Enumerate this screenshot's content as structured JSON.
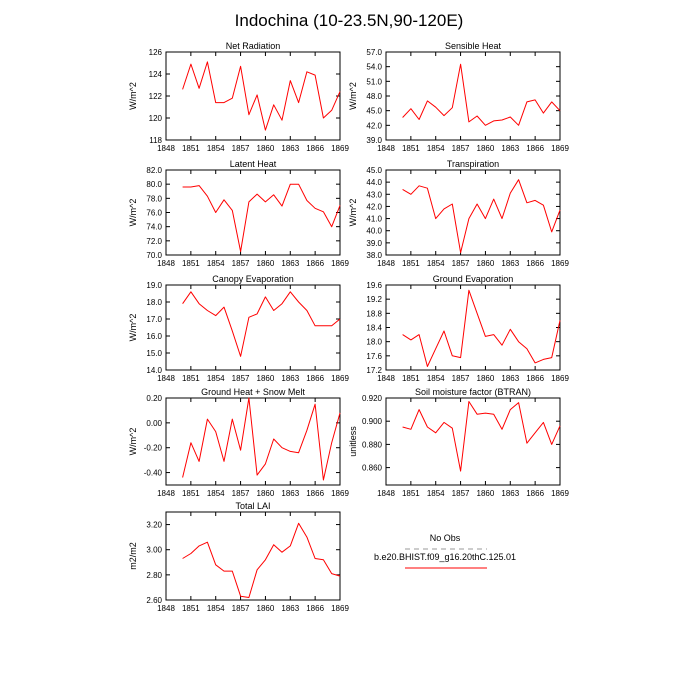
{
  "title": "Indochina (10-23.5N,90-120E)",
  "legend": {
    "entries": [
      {
        "name": "No Obs",
        "color": "#999999",
        "style": "dashed"
      },
      {
        "name": "b.e20.BHIST.f09_g16.20thC.125.01",
        "color": "#ff0000",
        "style": "solid"
      }
    ]
  },
  "chart_data": [
    {
      "type": "line",
      "title": "Net Radiation",
      "ylabel": "W/m^2",
      "xlim": [
        1848,
        1869
      ],
      "ylim": [
        118,
        126
      ],
      "xticks": [
        1848,
        1851,
        1854,
        1857,
        1860,
        1863,
        1866,
        1869
      ],
      "yticks": [
        "118",
        "120",
        "122",
        "124",
        "126"
      ],
      "x": [
        1850,
        1851,
        1852,
        1853,
        1854,
        1855,
        1856,
        1857,
        1858,
        1859,
        1860,
        1861,
        1862,
        1863,
        1864,
        1865,
        1866,
        1867,
        1868,
        1869
      ],
      "series": [
        {
          "color": "#ff0000",
          "values": [
            122.6,
            124.9,
            122.7,
            125.1,
            121.4,
            121.4,
            121.8,
            124.7,
            120.3,
            122.1,
            118.9,
            121.2,
            119.8,
            123.4,
            121.4,
            124.2,
            123.9,
            120.0,
            120.7,
            122.4
          ]
        }
      ]
    },
    {
      "type": "line",
      "title": "Sensible Heat",
      "ylabel": "W/m^2",
      "xlim": [
        1848,
        1869
      ],
      "ylim": [
        39,
        57
      ],
      "xticks": [
        1848,
        1851,
        1854,
        1857,
        1860,
        1863,
        1866,
        1869
      ],
      "yticks": [
        "39.0",
        "42.0",
        "45.0",
        "48.0",
        "51.0",
        "54.0",
        "57.0"
      ],
      "x": [
        1850,
        1851,
        1852,
        1853,
        1854,
        1855,
        1856,
        1857,
        1858,
        1859,
        1860,
        1861,
        1862,
        1863,
        1864,
        1865,
        1866,
        1867,
        1868,
        1869
      ],
      "series": [
        {
          "color": "#ff0000",
          "values": [
            43.6,
            45.4,
            43.2,
            47.0,
            45.7,
            44.0,
            45.6,
            54.5,
            42.7,
            43.9,
            42.0,
            42.9,
            43.1,
            43.7,
            42.0,
            46.8,
            47.2,
            44.5,
            46.8,
            45.0
          ]
        }
      ]
    },
    {
      "type": "line",
      "title": "Latent Heat",
      "ylabel": "W/m^2",
      "xlim": [
        1848,
        1869
      ],
      "ylim": [
        70,
        82
      ],
      "xticks": [
        1848,
        1851,
        1854,
        1857,
        1860,
        1863,
        1866,
        1869
      ],
      "yticks": [
        "70.0",
        "72.0",
        "74.0",
        "76.0",
        "78.0",
        "80.0",
        "82.0"
      ],
      "x": [
        1850,
        1851,
        1852,
        1853,
        1854,
        1855,
        1856,
        1857,
        1858,
        1859,
        1860,
        1861,
        1862,
        1863,
        1864,
        1865,
        1866,
        1867,
        1868,
        1869
      ],
      "series": [
        {
          "color": "#ff0000",
          "values": [
            79.6,
            79.6,
            79.8,
            78.3,
            76.0,
            77.8,
            76.3,
            70.5,
            77.5,
            78.6,
            77.5,
            78.5,
            76.9,
            80.0,
            80.0,
            77.7,
            76.6,
            76.1,
            74.0,
            77.0
          ]
        }
      ]
    },
    {
      "type": "line",
      "title": "Transpiration",
      "ylabel": "W/m^2",
      "xlim": [
        1848,
        1869
      ],
      "ylim": [
        38,
        45
      ],
      "xticks": [
        1848,
        1851,
        1854,
        1857,
        1860,
        1863,
        1866,
        1869
      ],
      "yticks": [
        "38.0",
        "39.0",
        "40.0",
        "41.0",
        "42.0",
        "43.0",
        "44.0",
        "45.0"
      ],
      "x": [
        1850,
        1851,
        1852,
        1853,
        1854,
        1855,
        1856,
        1857,
        1858,
        1859,
        1860,
        1861,
        1862,
        1863,
        1864,
        1865,
        1866,
        1867,
        1868,
        1869
      ],
      "series": [
        {
          "color": "#ff0000",
          "values": [
            43.4,
            43.0,
            43.7,
            43.5,
            41.0,
            41.8,
            42.2,
            38.2,
            41.0,
            42.2,
            41.0,
            42.6,
            41.0,
            43.1,
            44.2,
            42.3,
            42.5,
            42.1,
            39.9,
            41.7
          ]
        }
      ]
    },
    {
      "type": "line",
      "title": "Canopy Evaporation",
      "ylabel": "W/m^2",
      "xlim": [
        1848,
        1869
      ],
      "ylim": [
        14,
        19
      ],
      "xticks": [
        1848,
        1851,
        1854,
        1857,
        1860,
        1863,
        1866,
        1869
      ],
      "yticks": [
        "14.0",
        "15.0",
        "16.0",
        "17.0",
        "18.0",
        "19.0"
      ],
      "x": [
        1850,
        1851,
        1852,
        1853,
        1854,
        1855,
        1856,
        1857,
        1858,
        1859,
        1860,
        1861,
        1862,
        1863,
        1864,
        1865,
        1866,
        1867,
        1868,
        1869
      ],
      "series": [
        {
          "color": "#ff0000",
          "values": [
            17.9,
            18.6,
            17.9,
            17.5,
            17.2,
            17.7,
            16.3,
            14.8,
            17.1,
            17.3,
            18.3,
            17.5,
            17.9,
            18.6,
            18.0,
            17.5,
            16.6,
            16.6,
            16.6,
            17.0
          ]
        }
      ]
    },
    {
      "type": "line",
      "title": "Ground Evaporation",
      "ylabel": "",
      "xlim": [
        1848,
        1869
      ],
      "ylim": [
        17.2,
        19.6
      ],
      "xticks": [
        1848,
        1851,
        1854,
        1857,
        1860,
        1863,
        1866,
        1869
      ],
      "yticks": [
        "17.2",
        "17.6",
        "18.0",
        "18.4",
        "18.8",
        "19.2",
        "19.6"
      ],
      "x": [
        1850,
        1851,
        1852,
        1853,
        1854,
        1855,
        1856,
        1857,
        1858,
        1859,
        1860,
        1861,
        1862,
        1863,
        1864,
        1865,
        1866,
        1867,
        1868,
        1869
      ],
      "series": [
        {
          "color": "#ff0000",
          "values": [
            18.2,
            18.05,
            18.2,
            17.3,
            17.8,
            18.3,
            17.6,
            17.55,
            19.45,
            18.8,
            18.15,
            18.2,
            17.9,
            18.35,
            18.0,
            17.8,
            17.4,
            17.5,
            17.55,
            18.6
          ]
        }
      ]
    },
    {
      "type": "line",
      "title": "Ground Heat + Snow Melt",
      "ylabel": "W/m^2",
      "xlim": [
        1848,
        1869
      ],
      "ylim": [
        -0.5,
        0.2
      ],
      "xticks": [
        1848,
        1851,
        1854,
        1857,
        1860,
        1863,
        1866,
        1869
      ],
      "yticks": [
        "-0.40",
        "-0.20",
        "0.00",
        "0.20"
      ],
      "ytick_values": [
        -0.4,
        -0.2,
        0.0,
        0.2
      ],
      "x": [
        1850,
        1851,
        1852,
        1853,
        1854,
        1855,
        1856,
        1857,
        1858,
        1859,
        1860,
        1861,
        1862,
        1863,
        1864,
        1865,
        1866,
        1867,
        1868,
        1869
      ],
      "series": [
        {
          "color": "#ff0000",
          "values": [
            -0.44,
            -0.16,
            -0.31,
            0.03,
            -0.07,
            -0.31,
            0.03,
            -0.22,
            0.2,
            -0.42,
            -0.33,
            -0.13,
            -0.2,
            -0.23,
            -0.24,
            -0.06,
            0.15,
            -0.46,
            -0.16,
            0.08
          ]
        }
      ]
    },
    {
      "type": "line",
      "title": "Soil moisture factor (BTRAN)",
      "ylabel": "unitless",
      "xlim": [
        1848,
        1869
      ],
      "ylim": [
        0.845,
        0.92
      ],
      "xticks": [
        1848,
        1851,
        1854,
        1857,
        1860,
        1863,
        1866,
        1869
      ],
      "yticks": [
        "0.860",
        "0.880",
        "0.900",
        "0.920"
      ],
      "ytick_values": [
        0.86,
        0.88,
        0.9,
        0.92
      ],
      "x": [
        1850,
        1851,
        1852,
        1853,
        1854,
        1855,
        1856,
        1857,
        1858,
        1859,
        1860,
        1861,
        1862,
        1863,
        1864,
        1865,
        1866,
        1867,
        1868,
        1869
      ],
      "series": [
        {
          "color": "#ff0000",
          "values": [
            0.895,
            0.893,
            0.91,
            0.895,
            0.89,
            0.899,
            0.894,
            0.857,
            0.917,
            0.906,
            0.907,
            0.906,
            0.893,
            0.91,
            0.916,
            0.881,
            0.89,
            0.899,
            0.88,
            0.896
          ]
        }
      ]
    },
    {
      "type": "line",
      "title": "Total LAI",
      "ylabel": "m2/m2",
      "xlim": [
        1848,
        1869
      ],
      "ylim": [
        2.6,
        3.3
      ],
      "xticks": [
        1848,
        1851,
        1854,
        1857,
        1860,
        1863,
        1866,
        1869
      ],
      "yticks": [
        "2.60",
        "2.80",
        "3.00",
        "3.20"
      ],
      "ytick_values": [
        2.6,
        2.8,
        3.0,
        3.2
      ],
      "x": [
        1850,
        1851,
        1852,
        1853,
        1854,
        1855,
        1856,
        1857,
        1858,
        1859,
        1860,
        1861,
        1862,
        1863,
        1864,
        1865,
        1866,
        1867,
        1868,
        1869
      ],
      "series": [
        {
          "color": "#ff0000",
          "values": [
            2.93,
            2.97,
            3.03,
            3.06,
            2.88,
            2.83,
            2.83,
            2.63,
            2.62,
            2.84,
            2.92,
            3.04,
            2.98,
            3.03,
            3.21,
            3.1,
            2.93,
            2.92,
            2.81,
            2.79
          ]
        }
      ]
    }
  ]
}
